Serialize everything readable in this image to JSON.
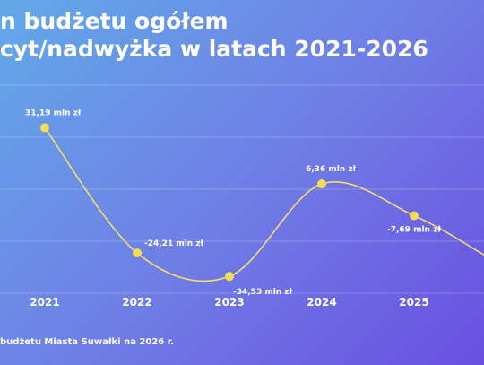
{
  "title_lines": [
    "n budżetu ogółem",
    "cyt/nadwyżka w latach 2021-2026"
  ],
  "source_text": "budżetu Miasta Suwałki na 2026 r.",
  "colors": {
    "line": "#f4df6a",
    "point": "#f5dc55",
    "label": "#ffffff"
  },
  "chart_data": {
    "type": "line",
    "title": "n budżetu ogółem cyt/nadwyżka w latach 2021-2026",
    "xlabel": "",
    "ylabel": "",
    "categories": [
      "2021",
      "2022",
      "2023",
      "2024",
      "2025"
    ],
    "series": [
      {
        "values": [
          31.19,
          -24.21,
          -34.53,
          6.36,
          -7.69
        ],
        "labels": [
          "31,19 mln zł",
          "-24,21 mln zł",
          "-34,53 mln zł",
          "6,36 mln zł",
          "-7,69 mln zł"
        ]
      }
    ],
    "ylim": [
      -42,
      50
    ],
    "grid": true,
    "legend": "none"
  }
}
